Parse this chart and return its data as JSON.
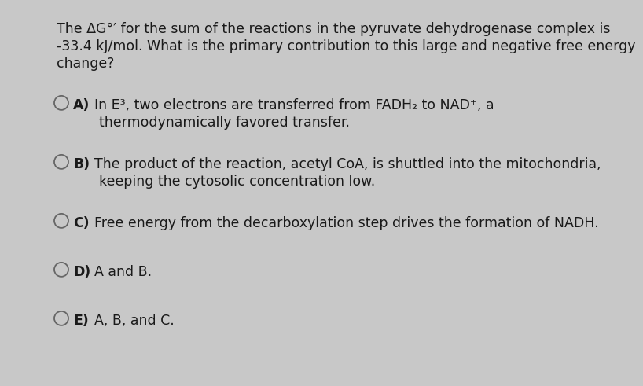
{
  "background_color": "#c8c8c8",
  "text_color": "#1a1a1a",
  "question_line1": "The ΔG°′ for the sum of the reactions in the pyruvate dehydrogenase complex is",
  "question_line2": "-33.4 kJ/mol. What is the primary contribution to this large and negative free energy",
  "question_line3": "change?",
  "options": [
    {
      "label": "A)",
      "line1": "In E³, two electrons are transferred from FADH₂ to NAD⁺, a",
      "line2": "thermodynamically favored transfer.",
      "two_lines": true
    },
    {
      "label": "B)",
      "line1": "The product of the reaction, acetyl CoA, is shuttled into the mitochondria,",
      "line2": "keeping the cytosolic concentration low.",
      "two_lines": true
    },
    {
      "label": "C)",
      "line1": "Free energy from the decarboxylation step drives the formation of NADH.",
      "line2": "",
      "two_lines": false
    },
    {
      "label": "D)",
      "line1": "A and B.",
      "line2": "",
      "two_lines": false
    },
    {
      "label": "E)",
      "line1": "A, B, and C.",
      "line2": "",
      "two_lines": false
    }
  ],
  "font_size": 12.5,
  "circle_size": 9,
  "circle_color": "#666666",
  "circle_lw": 1.3
}
